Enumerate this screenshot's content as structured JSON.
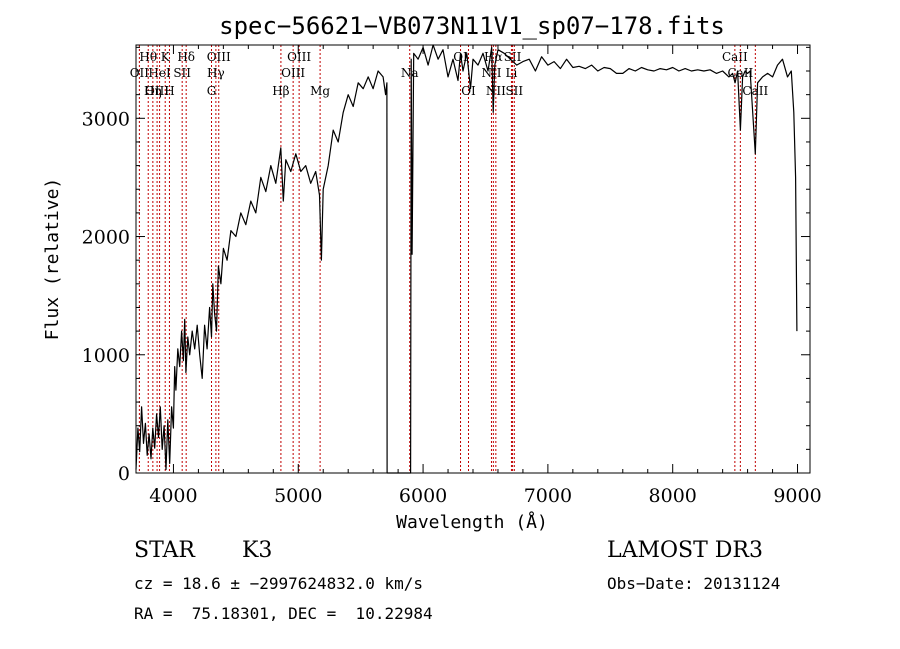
{
  "chart_data": {
    "type": "line",
    "title": "spec−56621−VB073N11V1_sp07−178.fits",
    "xlabel": "Wavelength (Å)",
    "ylabel": "Flux (relative)",
    "xlim": [
      3700,
      9100
    ],
    "ylim": [
      0,
      3620
    ],
    "x_ticks": [
      4000,
      5000,
      6000,
      7000,
      8000,
      9000
    ],
    "y_ticks": [
      0,
      1000,
      2000,
      3000
    ],
    "series": [
      {
        "name": "flux",
        "points": [
          [
            3700,
            30
          ],
          [
            3715,
            380
          ],
          [
            3730,
            180
          ],
          [
            3745,
            560
          ],
          [
            3760,
            250
          ],
          [
            3775,
            420
          ],
          [
            3790,
            150
          ],
          [
            3805,
            330
          ],
          [
            3820,
            120
          ],
          [
            3835,
            380
          ],
          [
            3850,
            210
          ],
          [
            3865,
            500
          ],
          [
            3880,
            300
          ],
          [
            3895,
            560
          ],
          [
            3910,
            200
          ],
          [
            3925,
            400
          ],
          [
            3940,
            30
          ],
          [
            3955,
            450
          ],
          [
            3970,
            80
          ],
          [
            3985,
            560
          ],
          [
            4000,
            380
          ],
          [
            4010,
            900
          ],
          [
            4020,
            700
          ],
          [
            4035,
            1050
          ],
          [
            4050,
            900
          ],
          [
            4065,
            1200
          ],
          [
            4080,
            950
          ],
          [
            4090,
            1300
          ],
          [
            4100,
            850
          ],
          [
            4115,
            1150
          ],
          [
            4130,
            1000
          ],
          [
            4150,
            1200
          ],
          [
            4170,
            1050
          ],
          [
            4190,
            1250
          ],
          [
            4210,
            1000
          ],
          [
            4230,
            800
          ],
          [
            4250,
            1250
          ],
          [
            4270,
            1050
          ],
          [
            4290,
            1400
          ],
          [
            4305,
            1150
          ],
          [
            4315,
            1600
          ],
          [
            4330,
            1350
          ],
          [
            4345,
            1200
          ],
          [
            4360,
            1750
          ],
          [
            4380,
            1600
          ],
          [
            4400,
            1900
          ],
          [
            4430,
            1800
          ],
          [
            4460,
            2050
          ],
          [
            4500,
            2000
          ],
          [
            4540,
            2200
          ],
          [
            4580,
            2100
          ],
          [
            4620,
            2300
          ],
          [
            4660,
            2200
          ],
          [
            4700,
            2500
          ],
          [
            4740,
            2380
          ],
          [
            4780,
            2600
          ],
          [
            4820,
            2450
          ],
          [
            4860,
            2750
          ],
          [
            4880,
            2300
          ],
          [
            4900,
            2650
          ],
          [
            4940,
            2550
          ],
          [
            4980,
            2700
          ],
          [
            5020,
            2550
          ],
          [
            5060,
            2600
          ],
          [
            5100,
            2450
          ],
          [
            5140,
            2550
          ],
          [
            5170,
            2350
          ],
          [
            5185,
            1800
          ],
          [
            5200,
            2400
          ],
          [
            5240,
            2600
          ],
          [
            5280,
            2900
          ],
          [
            5320,
            2800
          ],
          [
            5360,
            3050
          ],
          [
            5400,
            3200
          ],
          [
            5440,
            3100
          ],
          [
            5480,
            3300
          ],
          [
            5520,
            3250
          ],
          [
            5560,
            3350
          ],
          [
            5600,
            3250
          ],
          [
            5640,
            3400
          ],
          [
            5680,
            3350
          ],
          [
            5700,
            3200
          ],
          [
            5710,
            3300
          ],
          [
            5712,
            0
          ],
          [
            5900,
            0
          ],
          [
            5905,
            3500
          ],
          [
            5912,
            1850
          ],
          [
            5925,
            3550
          ],
          [
            5960,
            3500
          ],
          [
            6000,
            3600
          ],
          [
            6040,
            3450
          ],
          [
            6080,
            3620
          ],
          [
            6120,
            3500
          ],
          [
            6160,
            3580
          ],
          [
            6200,
            3350
          ],
          [
            6240,
            3500
          ],
          [
            6280,
            3320
          ],
          [
            6300,
            3550
          ],
          [
            6320,
            3400
          ],
          [
            6350,
            3550
          ],
          [
            6380,
            3250
          ],
          [
            6400,
            3500
          ],
          [
            6440,
            3450
          ],
          [
            6480,
            3550
          ],
          [
            6520,
            3400
          ],
          [
            6550,
            3600
          ],
          [
            6562,
            3050
          ],
          [
            6575,
            3450
          ],
          [
            6600,
            3580
          ],
          [
            6650,
            3550
          ],
          [
            6700,
            3500
          ],
          [
            6750,
            3450
          ],
          [
            6800,
            3480
          ],
          [
            6850,
            3500
          ],
          [
            6900,
            3400
          ],
          [
            6950,
            3520
          ],
          [
            7000,
            3450
          ],
          [
            7050,
            3480
          ],
          [
            7100,
            3420
          ],
          [
            7150,
            3500
          ],
          [
            7200,
            3430
          ],
          [
            7250,
            3440
          ],
          [
            7300,
            3420
          ],
          [
            7350,
            3450
          ],
          [
            7400,
            3400
          ],
          [
            7450,
            3430
          ],
          [
            7500,
            3420
          ],
          [
            7550,
            3380
          ],
          [
            7600,
            3380
          ],
          [
            7650,
            3420
          ],
          [
            7700,
            3400
          ],
          [
            7750,
            3430
          ],
          [
            7800,
            3410
          ],
          [
            7850,
            3400
          ],
          [
            7900,
            3420
          ],
          [
            7950,
            3410
          ],
          [
            8000,
            3430
          ],
          [
            8050,
            3400
          ],
          [
            8100,
            3420
          ],
          [
            8150,
            3400
          ],
          [
            8200,
            3410
          ],
          [
            8250,
            3400
          ],
          [
            8300,
            3410
          ],
          [
            8350,
            3380
          ],
          [
            8400,
            3400
          ],
          [
            8450,
            3350
          ],
          [
            8480,
            3380
          ],
          [
            8500,
            3300
          ],
          [
            8520,
            3400
          ],
          [
            8542,
            2900
          ],
          [
            8560,
            3350
          ],
          [
            8580,
            3400
          ],
          [
            8600,
            3380
          ],
          [
            8620,
            3400
          ],
          [
            8662,
            2700
          ],
          [
            8680,
            3300
          ],
          [
            8720,
            3350
          ],
          [
            8760,
            3380
          ],
          [
            8800,
            3350
          ],
          [
            8840,
            3450
          ],
          [
            8880,
            3500
          ],
          [
            8920,
            3350
          ],
          [
            8950,
            3400
          ],
          [
            8970,
            3050
          ],
          [
            8985,
            2500
          ],
          [
            8995,
            1200
          ]
        ]
      }
    ],
    "spectral_lines": [
      {
        "label": "Hθ",
        "wavelength": 3798,
        "row": 1
      },
      {
        "label": "K",
        "wavelength": 3934,
        "row": 1
      },
      {
        "label": "Hδ",
        "wavelength": 4102,
        "row": 1
      },
      {
        "label": "OIII",
        "wavelength": 4363,
        "row": 1
      },
      {
        "label": "OIII",
        "wavelength": 5007,
        "row": 1
      },
      {
        "label": "OI",
        "wavelength": 6300,
        "row": 1
      },
      {
        "label": "Hα",
        "wavelength": 6563,
        "row": 1
      },
      {
        "label": "SII",
        "wavelength": 6717,
        "row": 1
      },
      {
        "label": "CaII",
        "wavelength": 8498,
        "row": 1
      },
      {
        "label": "OII",
        "wavelength": 3727,
        "row": 2
      },
      {
        "label": "HeI",
        "wavelength": 3889,
        "row": 2
      },
      {
        "label": "SII",
        "wavelength": 4070,
        "row": 2
      },
      {
        "label": "Hγ",
        "wavelength": 4340,
        "row": 2
      },
      {
        "label": "OIII",
        "wavelength": 4959,
        "row": 2
      },
      {
        "label": "Na",
        "wavelength": 5893,
        "row": 2
      },
      {
        "label": "NII",
        "wavelength": 6548,
        "row": 2
      },
      {
        "label": "Li",
        "wavelength": 6708,
        "row": 2
      },
      {
        "label": "CaII",
        "wavelength": 8542,
        "row": 2
      },
      {
        "label": "OIII",
        "wavelength": 3869,
        "row": 3
      },
      {
        "label": "Hη",
        "wavelength": 3835,
        "row": 3
      },
      {
        "label": "H",
        "wavelength": 3968,
        "row": 3
      },
      {
        "label": "G",
        "wavelength": 4305,
        "row": 3
      },
      {
        "label": "Hβ",
        "wavelength": 4861,
        "row": 3
      },
      {
        "label": "Mg",
        "wavelength": 5175,
        "row": 3
      },
      {
        "label": "OI",
        "wavelength": 6364,
        "row": 3
      },
      {
        "label": "NII",
        "wavelength": 6583,
        "row": 3
      },
      {
        "label": "SII",
        "wavelength": 6731,
        "row": 3
      },
      {
        "label": "CaII",
        "wavelength": 8662,
        "row": 3
      }
    ]
  },
  "info": {
    "object_class": "STAR",
    "subclass": "K3",
    "survey": "LAMOST DR3",
    "cz": "cz = 18.6 ± −2997624832.0 km/s",
    "obs_date": "Obs−Date: 20131124",
    "coords": "RA =  75.18301, DEC =  10.22984"
  }
}
